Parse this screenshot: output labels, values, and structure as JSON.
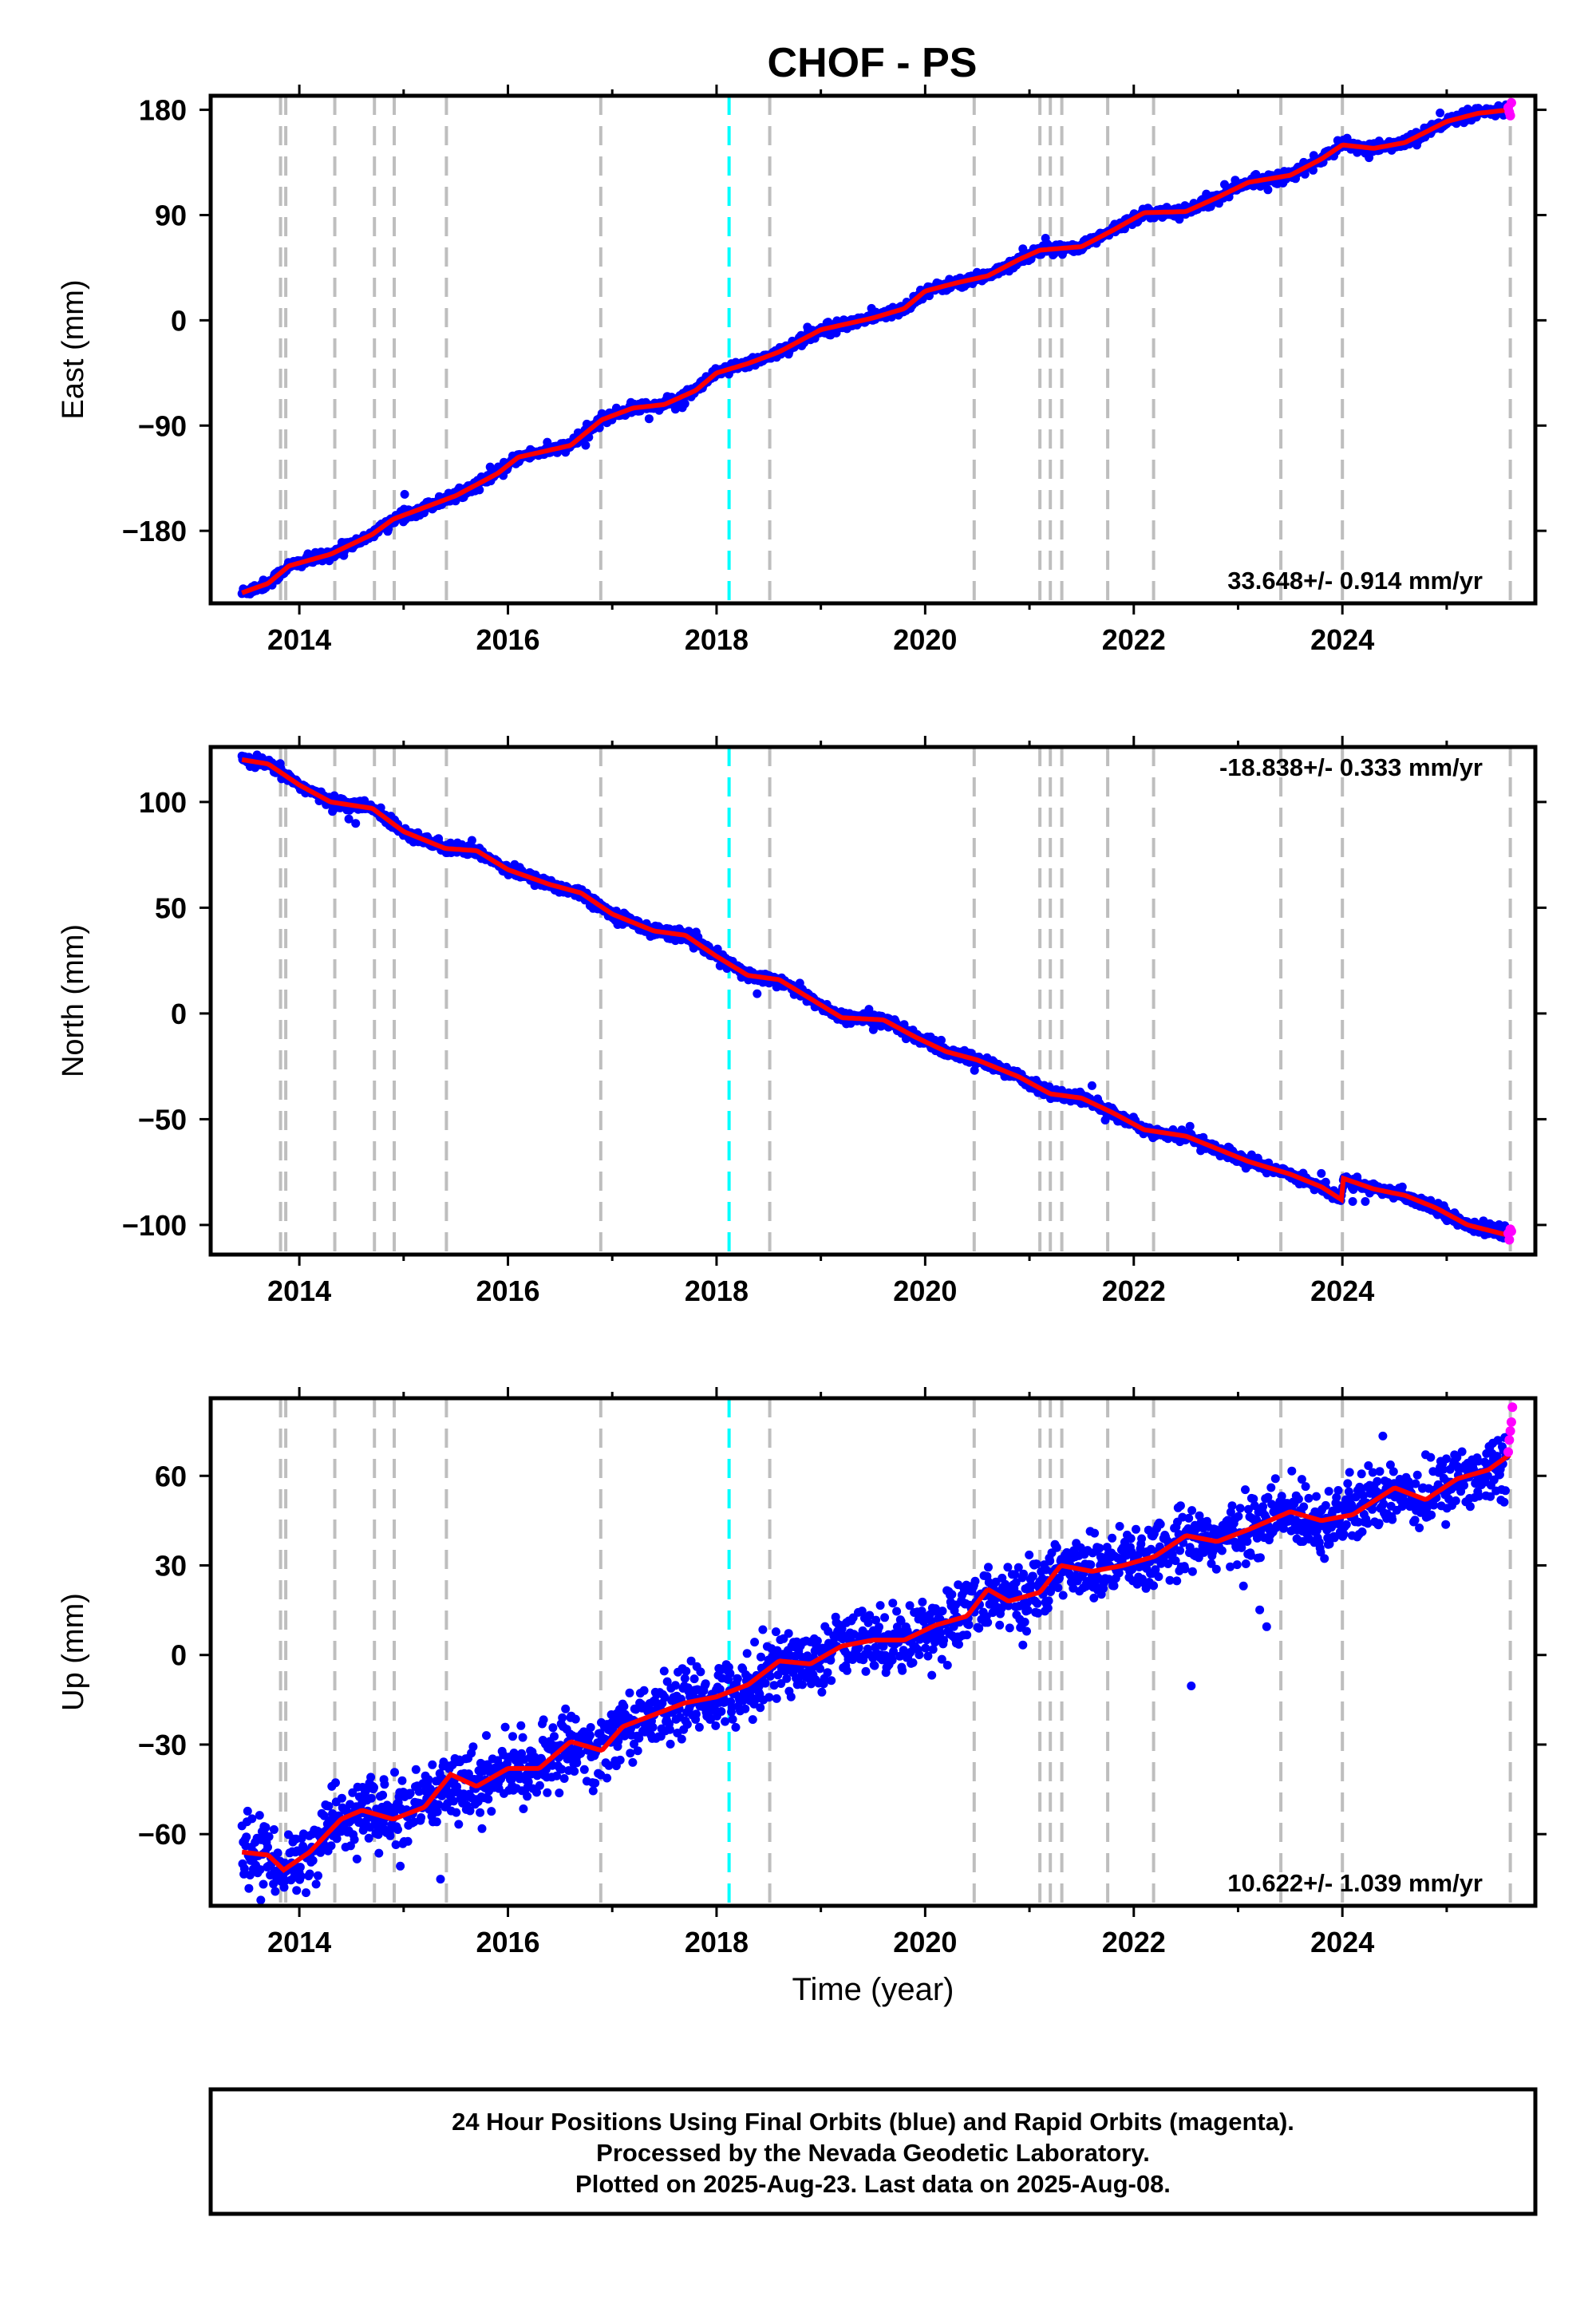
{
  "chart_data": {
    "type": "scatter",
    "title": "CHOF - PS",
    "xlabel": "Time (year)",
    "xlim": [
      2013.15,
      2025.85
    ],
    "x_ticks": [
      "2014",
      "2016",
      "2018",
      "2020",
      "2022",
      "2024"
    ],
    "x_tick_values": [
      2014,
      2016,
      2018,
      2020,
      2022,
      2024
    ],
    "grid": false,
    "series_legend": {
      "final_orbits": {
        "color": "#0000ff",
        "name": "Final Orbits (blue)"
      },
      "rapid_orbits": {
        "color": "#ff00ff",
        "name": "Rapid Orbits (magenta)"
      },
      "fit": {
        "color": "#ff0000"
      }
    },
    "event_lines": {
      "gray_dashed": [
        2013.82,
        2013.87,
        2014.34,
        2014.72,
        2014.91,
        2015.41,
        2016.89,
        2018.51,
        2020.47,
        2021.1,
        2021.2,
        2021.31,
        2021.75,
        2022.19,
        2023.41,
        2024.0,
        2025.61
      ],
      "cyan_dashed": [
        2018.12
      ],
      "gray_color": "#bebebe",
      "cyan_color": "#00ffff"
    },
    "panels": [
      {
        "ylabel": "East (mm)",
        "ylim": [
          -242,
          192
        ],
        "y_ticks": [
          "180",
          "90",
          "0",
          "−90",
          "−180"
        ],
        "y_tick_values": [
          180,
          90,
          0,
          -90,
          -180
        ],
        "rate_label": "33.648+/- 0.914 mm/yr",
        "rate_position": "bottom-right",
        "noise": 2.2,
        "points": [
          [
            2013.45,
            -233
          ],
          [
            2013.7,
            -225
          ],
          [
            2013.9,
            -210
          ],
          [
            2014.3,
            -200
          ],
          [
            2014.7,
            -183
          ],
          [
            2014.9,
            -170
          ],
          [
            2015.2,
            -160
          ],
          [
            2015.5,
            -150
          ],
          [
            2015.9,
            -131
          ],
          [
            2016.1,
            -117
          ],
          [
            2016.6,
            -107
          ],
          [
            2016.9,
            -85
          ],
          [
            2017.2,
            -75
          ],
          [
            2017.5,
            -72
          ],
          [
            2017.8,
            -60
          ],
          [
            2018.0,
            -45
          ],
          [
            2018.3,
            -37
          ],
          [
            2018.6,
            -27
          ],
          [
            2019.0,
            -8
          ],
          [
            2019.5,
            2
          ],
          [
            2019.8,
            10
          ],
          [
            2020.0,
            25
          ],
          [
            2020.3,
            32
          ],
          [
            2020.6,
            38
          ],
          [
            2020.9,
            52
          ],
          [
            2021.1,
            60
          ],
          [
            2021.5,
            63
          ],
          [
            2021.8,
            77
          ],
          [
            2022.1,
            92
          ],
          [
            2022.5,
            93
          ],
          [
            2022.8,
            105
          ],
          [
            2023.1,
            118
          ],
          [
            2023.5,
            124
          ],
          [
            2023.8,
            138
          ],
          [
            2024.0,
            150
          ],
          [
            2024.3,
            147
          ],
          [
            2024.6,
            152
          ],
          [
            2025.0,
            170
          ],
          [
            2025.3,
            177
          ],
          [
            2025.6,
            180
          ]
        ],
        "rapid": [
          [
            2025.59,
            182
          ],
          [
            2025.6,
            178
          ],
          [
            2025.61,
            175
          ],
          [
            2025.62,
            186
          ]
        ]
      },
      {
        "ylabel": "North (mm)",
        "ylim": [
          -114,
          126
        ],
        "y_ticks": [
          "100",
          "50",
          "0",
          "−50",
          "−100"
        ],
        "y_tick_values": [
          100,
          50,
          0,
          -50,
          -100
        ],
        "rate_label": "-18.838+/- 0.333 mm/yr",
        "rate_position": "top-right",
        "noise": 1.3,
        "points": [
          [
            2013.45,
            120
          ],
          [
            2013.7,
            118
          ],
          [
            2014.0,
            108
          ],
          [
            2014.3,
            100
          ],
          [
            2014.7,
            97
          ],
          [
            2015.0,
            86
          ],
          [
            2015.4,
            78
          ],
          [
            2015.7,
            77
          ],
          [
            2016.0,
            68
          ],
          [
            2016.4,
            61
          ],
          [
            2016.7,
            57
          ],
          [
            2017.0,
            47
          ],
          [
            2017.4,
            39
          ],
          [
            2017.7,
            37
          ],
          [
            2018.0,
            27
          ],
          [
            2018.3,
            18
          ],
          [
            2018.6,
            16
          ],
          [
            2018.9,
            7
          ],
          [
            2019.2,
            -2
          ],
          [
            2019.6,
            -3
          ],
          [
            2019.9,
            -11
          ],
          [
            2020.2,
            -18
          ],
          [
            2020.5,
            -22
          ],
          [
            2020.9,
            -30
          ],
          [
            2021.2,
            -38
          ],
          [
            2021.5,
            -40
          ],
          [
            2021.8,
            -47
          ],
          [
            2022.1,
            -55
          ],
          [
            2022.5,
            -58
          ],
          [
            2022.8,
            -64
          ],
          [
            2023.1,
            -70
          ],
          [
            2023.5,
            -76
          ],
          [
            2023.8,
            -82
          ],
          [
            2023.99,
            -88
          ],
          [
            2024.01,
            -78
          ],
          [
            2024.3,
            -83
          ],
          [
            2024.6,
            -86
          ],
          [
            2024.9,
            -92
          ],
          [
            2025.2,
            -100
          ],
          [
            2025.6,
            -105
          ]
        ],
        "rapid": [
          [
            2025.59,
            -104
          ],
          [
            2025.6,
            -107
          ],
          [
            2025.61,
            -102
          ],
          [
            2025.62,
            -103
          ]
        ]
      },
      {
        "ylabel": "Up (mm)",
        "ylim": [
          -84,
          86
        ],
        "y_ticks": [
          "60",
          "30",
          "0",
          "−30",
          "−60"
        ],
        "y_tick_values": [
          60,
          30,
          0,
          -30,
          -60
        ],
        "rate_label": "10.622+/- 1.039 mm/yr",
        "rate_position": "bottom-right",
        "noise": 5.5,
        "points": [
          [
            2013.45,
            -66
          ],
          [
            2013.7,
            -67
          ],
          [
            2013.85,
            -72
          ],
          [
            2014.1,
            -66
          ],
          [
            2014.4,
            -55
          ],
          [
            2014.6,
            -52
          ],
          [
            2014.9,
            -55
          ],
          [
            2015.2,
            -51
          ],
          [
            2015.45,
            -40
          ],
          [
            2015.7,
            -44
          ],
          [
            2016.0,
            -38
          ],
          [
            2016.3,
            -38
          ],
          [
            2016.6,
            -29
          ],
          [
            2016.9,
            -32
          ],
          [
            2017.1,
            -24
          ],
          [
            2017.4,
            -20
          ],
          [
            2017.7,
            -16
          ],
          [
            2018.0,
            -14
          ],
          [
            2018.3,
            -10
          ],
          [
            2018.6,
            -2
          ],
          [
            2018.9,
            -3
          ],
          [
            2019.2,
            3
          ],
          [
            2019.5,
            5
          ],
          [
            2019.8,
            5
          ],
          [
            2020.1,
            10
          ],
          [
            2020.4,
            13
          ],
          [
            2020.6,
            22
          ],
          [
            2020.8,
            18
          ],
          [
            2021.1,
            21
          ],
          [
            2021.3,
            30
          ],
          [
            2021.6,
            28
          ],
          [
            2021.9,
            30
          ],
          [
            2022.2,
            33
          ],
          [
            2022.5,
            40
          ],
          [
            2022.8,
            38
          ],
          [
            2023.1,
            42
          ],
          [
            2023.5,
            48
          ],
          [
            2023.8,
            45
          ],
          [
            2024.1,
            47
          ],
          [
            2024.5,
            56
          ],
          [
            2024.8,
            52
          ],
          [
            2025.1,
            59
          ],
          [
            2025.4,
            62
          ],
          [
            2025.6,
            67
          ]
        ],
        "rapid": [
          [
            2025.59,
            68
          ],
          [
            2025.6,
            72
          ],
          [
            2025.61,
            75
          ],
          [
            2025.62,
            78
          ],
          [
            2025.63,
            83
          ]
        ]
      }
    ]
  },
  "caption": {
    "line1": "24 Hour Positions Using Final Orbits (blue) and Rapid Orbits (magenta).",
    "line2": "Processed by the Nevada Geodetic Laboratory.",
    "line3": "Plotted on 2025-Aug-23. Last data on 2025-Aug-08."
  }
}
